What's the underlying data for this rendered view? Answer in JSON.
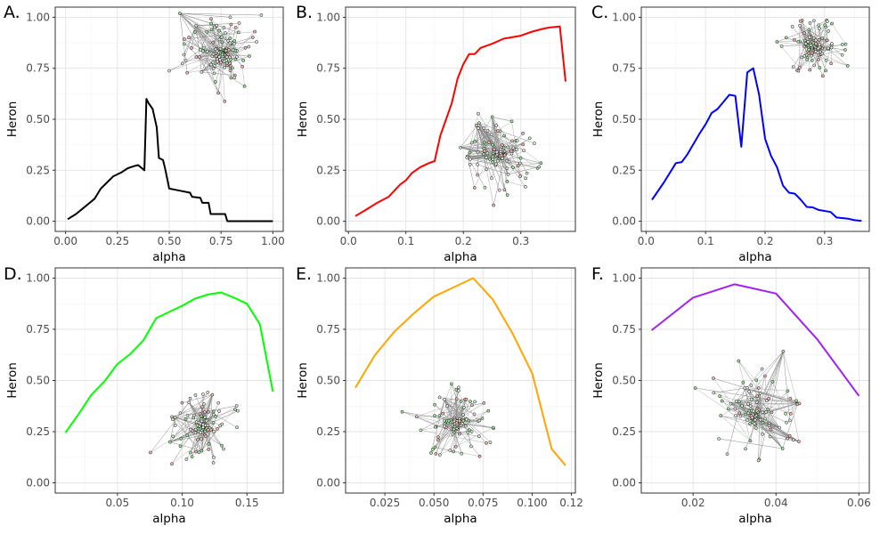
{
  "chart_data": [
    {
      "panel": "A.",
      "type": "line",
      "xlabel": "alpha",
      "ylabel": "Heron",
      "xlim": [
        -0.05,
        1.05
      ],
      "ylim": [
        -0.05,
        1.05
      ],
      "xticks": [
        0.0,
        0.25,
        0.5,
        0.75,
        1.0
      ],
      "xtick_labels": [
        "0.00",
        "0.25",
        "0.50",
        "0.75",
        "1.00"
      ],
      "yticks": [
        0.0,
        0.25,
        0.5,
        0.75,
        1.0
      ],
      "ytick_labels": [
        "0.00",
        "0.25",
        "0.50",
        "0.75",
        "1.00"
      ],
      "grid": true,
      "line_color": "#000000",
      "network_inset": "top-right",
      "x": [
        0.01,
        0.05,
        0.08,
        0.11,
        0.14,
        0.17,
        0.2,
        0.23,
        0.25,
        0.27,
        0.3,
        0.33,
        0.35,
        0.38,
        0.39,
        0.4,
        0.42,
        0.44,
        0.45,
        0.47,
        0.48,
        0.5,
        0.55,
        0.6,
        0.61,
        0.65,
        0.66,
        0.69,
        0.7,
        0.75,
        0.77,
        0.78,
        1.0
      ],
      "y": [
        0.01,
        0.035,
        0.06,
        0.085,
        0.11,
        0.16,
        0.19,
        0.22,
        0.23,
        0.24,
        0.26,
        0.27,
        0.275,
        0.25,
        0.6,
        0.58,
        0.55,
        0.46,
        0.31,
        0.3,
        0.26,
        0.16,
        0.15,
        0.14,
        0.12,
        0.115,
        0.09,
        0.09,
        0.035,
        0.035,
        0.035,
        0.0,
        0.0
      ]
    },
    {
      "panel": "B.",
      "type": "line",
      "xlabel": "alpha",
      "ylabel": "Heron",
      "xlim": [
        -0.005,
        0.395
      ],
      "ylim": [
        -0.05,
        1.05
      ],
      "xticks": [
        0.0,
        0.1,
        0.2,
        0.3
      ],
      "xtick_labels": [
        "0.0",
        "0.1",
        "0.2",
        "0.3"
      ],
      "yticks": [
        0.0,
        0.25,
        0.5,
        0.75,
        1.0
      ],
      "ytick_labels": [
        "0.00",
        "0.25",
        "0.50",
        "0.75",
        "1.00"
      ],
      "grid": true,
      "line_color": "#ff0000",
      "network_inset": "bottom-center",
      "x": [
        0.012,
        0.03,
        0.05,
        0.07,
        0.09,
        0.1,
        0.11,
        0.125,
        0.14,
        0.15,
        0.16,
        0.17,
        0.18,
        0.19,
        0.2,
        0.21,
        0.22,
        0.23,
        0.25,
        0.27,
        0.28,
        0.3,
        0.32,
        0.34,
        0.35,
        0.368,
        0.378
      ],
      "y": [
        0.025,
        0.055,
        0.09,
        0.12,
        0.18,
        0.2,
        0.235,
        0.265,
        0.285,
        0.295,
        0.42,
        0.5,
        0.58,
        0.7,
        0.77,
        0.82,
        0.82,
        0.85,
        0.87,
        0.895,
        0.9,
        0.91,
        0.93,
        0.945,
        0.95,
        0.955,
        0.685
      ]
    },
    {
      "panel": "C.",
      "type": "line",
      "xlabel": "alpha",
      "ylabel": "Heron",
      "xlim": [
        -0.008,
        0.375
      ],
      "ylim": [
        -0.05,
        1.05
      ],
      "xticks": [
        0.0,
        0.1,
        0.2,
        0.3
      ],
      "xtick_labels": [
        "0.0",
        "0.1",
        "0.2",
        "0.3"
      ],
      "yticks": [
        0.0,
        0.25,
        0.5,
        0.75,
        1.0
      ],
      "ytick_labels": [
        "0.00",
        "0.25",
        "0.50",
        "0.75",
        "1.00"
      ],
      "grid": true,
      "line_color": "#0000ff",
      "network_inset": "top-right",
      "x": [
        0.01,
        0.03,
        0.05,
        0.06,
        0.07,
        0.09,
        0.1,
        0.11,
        0.12,
        0.14,
        0.15,
        0.16,
        0.17,
        0.18,
        0.19,
        0.2,
        0.21,
        0.22,
        0.23,
        0.24,
        0.25,
        0.26,
        0.27,
        0.28,
        0.29,
        0.31,
        0.32,
        0.34,
        0.35,
        0.362
      ],
      "y": [
        0.105,
        0.19,
        0.285,
        0.29,
        0.33,
        0.43,
        0.475,
        0.53,
        0.55,
        0.62,
        0.615,
        0.365,
        0.73,
        0.75,
        0.62,
        0.405,
        0.32,
        0.265,
        0.175,
        0.14,
        0.135,
        0.105,
        0.07,
        0.068,
        0.055,
        0.045,
        0.018,
        0.012,
        0.005,
        0.002
      ]
    },
    {
      "panel": "D.",
      "type": "line",
      "xlabel": "alpha",
      "ylabel": "Heron",
      "xlim": [
        0.002,
        0.178
      ],
      "ylim": [
        -0.05,
        1.05
      ],
      "xticks": [
        0.05,
        0.1,
        0.15
      ],
      "xtick_labels": [
        "0.05",
        "0.10",
        "0.15"
      ],
      "yticks": [
        0.0,
        0.25,
        0.5,
        0.75,
        1.0
      ],
      "ytick_labels": [
        "0.00",
        "0.25",
        "0.50",
        "0.75",
        "1.00"
      ],
      "grid": true,
      "line_color": "#00ff00",
      "network_inset": "bottom-right",
      "x": [
        0.01,
        0.02,
        0.03,
        0.04,
        0.05,
        0.06,
        0.07,
        0.08,
        0.09,
        0.1,
        0.11,
        0.12,
        0.13,
        0.14,
        0.15,
        0.16,
        0.17
      ],
      "y": [
        0.245,
        0.335,
        0.43,
        0.495,
        0.58,
        0.63,
        0.695,
        0.805,
        0.835,
        0.865,
        0.9,
        0.92,
        0.93,
        0.905,
        0.875,
        0.775,
        0.445
      ]
    },
    {
      "panel": "E.",
      "type": "line",
      "xlabel": "alpha",
      "ylabel": "Heron",
      "xlim": [
        0.005,
        0.122
      ],
      "ylim": [
        -0.05,
        1.05
      ],
      "xticks": [
        0.025,
        0.05,
        0.075,
        0.1,
        0.12
      ],
      "xtick_labels": [
        "0.025",
        "0.050",
        "0.075",
        "0.100",
        "0.12"
      ],
      "yticks": [
        0.0,
        0.25,
        0.5,
        0.75,
        1.0
      ],
      "ytick_labels": [
        "0.00",
        "0.25",
        "0.50",
        "0.75",
        "1.00"
      ],
      "grid": true,
      "line_color": "#ffa500",
      "network_inset": "bottom-center",
      "x": [
        0.01,
        0.02,
        0.03,
        0.04,
        0.05,
        0.06,
        0.07,
        0.08,
        0.09,
        0.1,
        0.11,
        0.117
      ],
      "y": [
        0.465,
        0.625,
        0.74,
        0.83,
        0.91,
        0.955,
        1.0,
        0.895,
        0.73,
        0.535,
        0.165,
        0.085
      ]
    },
    {
      "panel": "F.",
      "type": "line",
      "xlabel": "alpha",
      "ylabel": "Heron",
      "xlim": [
        0.0075,
        0.0625
      ],
      "ylim": [
        -0.05,
        1.05
      ],
      "xticks": [
        0.02,
        0.04,
        0.06
      ],
      "xtick_labels": [
        "0.02",
        "0.04",
        "0.06"
      ],
      "yticks": [
        0.0,
        0.25,
        0.5,
        0.75,
        1.0
      ],
      "ytick_labels": [
        "0.00",
        "0.25",
        "0.50",
        "0.75",
        "1.00"
      ],
      "grid": true,
      "line_color": "#a020f0",
      "network_inset": "bottom-center",
      "x": [
        0.01,
        0.02,
        0.03,
        0.04,
        0.05,
        0.06
      ],
      "y": [
        0.745,
        0.905,
        0.97,
        0.925,
        0.7,
        0.425
      ]
    }
  ]
}
